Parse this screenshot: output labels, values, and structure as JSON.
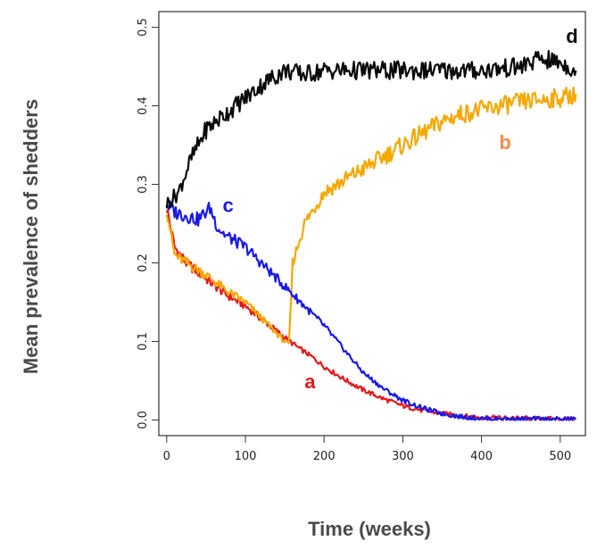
{
  "chart_data": {
    "type": "line",
    "title": "",
    "xlabel": "Time (weeks)",
    "ylabel": "Mean prevalence of shedders",
    "xlim": [
      0,
      520
    ],
    "ylim": [
      0,
      0.5
    ],
    "xticks": [
      0,
      100,
      200,
      300,
      400,
      500
    ],
    "yticks": [
      0.0,
      0.1,
      0.2,
      0.3,
      0.4,
      0.5
    ],
    "xtick_labels": [
      "0",
      "100",
      "200",
      "300",
      "400",
      "500"
    ],
    "ytick_labels": [
      "0.0",
      "0.1",
      "0.2",
      "0.3",
      "0.4",
      "0.5"
    ],
    "grid": false,
    "series": [
      {
        "name": "a",
        "color": "#e8161b",
        "x": [
          0,
          10,
          25,
          50,
          75,
          100,
          125,
          150,
          170,
          185,
          200,
          225,
          250,
          275,
          300,
          325,
          350,
          375,
          400,
          450,
          500,
          520
        ],
        "y": [
          0.27,
          0.22,
          0.2,
          0.18,
          0.16,
          0.145,
          0.125,
          0.105,
          0.09,
          0.08,
          0.068,
          0.052,
          0.038,
          0.027,
          0.018,
          0.012,
          0.008,
          0.005,
          0.003,
          0.002,
          0.001,
          0.001
        ]
      },
      {
        "name": "b",
        "color": "#f5a800",
        "x": [
          0,
          10,
          25,
          50,
          75,
          100,
          125,
          150,
          155,
          157,
          160,
          175,
          200,
          225,
          250,
          275,
          300,
          325,
          350,
          375,
          400,
          450,
          500,
          520
        ],
        "y": [
          0.27,
          0.21,
          0.2,
          0.185,
          0.165,
          0.15,
          0.125,
          0.1,
          0.095,
          0.13,
          0.2,
          0.25,
          0.29,
          0.305,
          0.32,
          0.335,
          0.35,
          0.365,
          0.38,
          0.39,
          0.395,
          0.405,
          0.41,
          0.415
        ]
      },
      {
        "name": "c",
        "color": "#1a1ae6",
        "x": [
          0,
          10,
          25,
          40,
          55,
          65,
          75,
          100,
          125,
          150,
          175,
          200,
          225,
          250,
          275,
          300,
          325,
          350,
          375,
          400,
          450,
          500,
          520
        ],
        "y": [
          0.275,
          0.265,
          0.26,
          0.255,
          0.27,
          0.245,
          0.235,
          0.22,
          0.195,
          0.17,
          0.145,
          0.12,
          0.09,
          0.06,
          0.04,
          0.025,
          0.015,
          0.008,
          0.004,
          0.002,
          0.001,
          0.001,
          0.001
        ]
      },
      {
        "name": "d",
        "color": "#0a0a0a",
        "x": [
          0,
          15,
          30,
          50,
          75,
          100,
          125,
          150,
          175,
          200,
          250,
          300,
          350,
          400,
          450,
          475,
          500,
          520
        ],
        "y": [
          0.275,
          0.29,
          0.33,
          0.37,
          0.39,
          0.41,
          0.43,
          0.445,
          0.44,
          0.445,
          0.445,
          0.445,
          0.445,
          0.445,
          0.45,
          0.46,
          0.455,
          0.445
        ]
      }
    ],
    "annotations": [
      {
        "text": "a",
        "x": 182,
        "y": 0.04,
        "color": "#e8161b"
      },
      {
        "text": "b",
        "x": 430,
        "y": 0.345,
        "color": "#f58a4a"
      },
      {
        "text": "c",
        "x": 78,
        "y": 0.265,
        "color": "#1a1ae6"
      },
      {
        "text": "d",
        "x": 515,
        "y": 0.48,
        "color": "#0a0a0a"
      }
    ]
  }
}
